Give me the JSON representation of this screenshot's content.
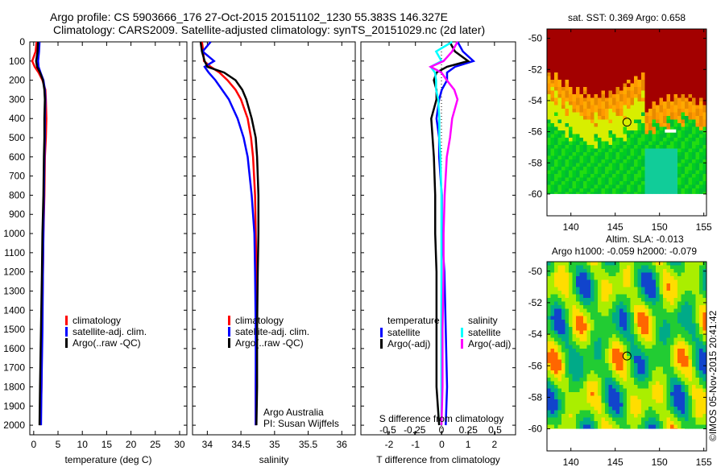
{
  "title_line1": "Argo profile: CS 5903666_176 27-Oct-2015 20151102_1230 55.383S 146.327E",
  "title_line2": "Climatology: CARS2009. Satellite-adjusted climatology: synTS_20151029.nc (2d later)",
  "colors": {
    "climatology": "#ff0000",
    "satellite": "#0000ff",
    "argo": "#000000",
    "sal_satellite": "#00ffff",
    "sal_argo": "#ff00ff"
  },
  "chart_data": [
    {
      "type": "line",
      "xlabel": "temperature (deg C)",
      "ylabel": "",
      "xlim": [
        -0.8,
        31.5
      ],
      "ylim": [
        2050,
        0
      ],
      "xticks": [
        "0",
        "5",
        "10",
        "15",
        "20",
        "25",
        "30"
      ],
      "xtick_values": [
        0,
        5,
        10,
        15,
        20,
        25,
        30
      ],
      "yticks": [
        "0",
        "100",
        "200",
        "300",
        "400",
        "500",
        "600",
        "700",
        "800",
        "900",
        "1000",
        "1100",
        "1200",
        "1300",
        "1400",
        "1500",
        "1600",
        "1700",
        "1800",
        "1900",
        "2000"
      ],
      "legend": [
        "climatology",
        "satellite-adj. clim.",
        "Argo(..raw -QC)"
      ],
      "depth": [
        0,
        50,
        100,
        130,
        160,
        200,
        250,
        300,
        400,
        500,
        600,
        800,
        1000,
        1200,
        1500,
        1800,
        2000
      ],
      "series": [
        {
          "name": "climatology",
          "color": "climatology",
          "values": [
            0.6,
            0.4,
            -0.3,
            0.2,
            1.0,
            1.8,
            2.4,
            2.5,
            2.6,
            2.5,
            2.3,
            2.2,
            2.0,
            1.9,
            1.7,
            1.6,
            1.4
          ]
        },
        {
          "name": "satellite-adj. clim.",
          "color": "satellite",
          "values": [
            1.2,
            1.1,
            0.9,
            1.0,
            1.4,
            2.0,
            2.3,
            2.4,
            2.3,
            2.3,
            2.2,
            2.1,
            2.0,
            1.9,
            1.8,
            1.6,
            1.5
          ]
        },
        {
          "name": "Argo(..raw -QC)",
          "color": "argo",
          "values": [
            0.9,
            0.8,
            0.5,
            0.7,
            1.3,
            1.9,
            2.2,
            2.3,
            2.2,
            2.2,
            2.1,
            2.0,
            1.8,
            1.7,
            1.5,
            1.3,
            1.2
          ]
        }
      ]
    },
    {
      "type": "line",
      "xlabel": "salinity",
      "xlim": [
        33.78,
        36.2
      ],
      "ylim": [
        2050,
        0
      ],
      "xticks": [
        "34",
        "34.5",
        "35",
        "35.5",
        "36"
      ],
      "xtick_values": [
        34,
        34.5,
        35,
        35.5,
        36
      ],
      "legend": [
        "climatology",
        "satellite-adj. clim.",
        "Argo(..raw -QC)"
      ],
      "annotation": [
        "Argo Australia",
        "PI: Susan Wijffels"
      ],
      "depth": [
        0,
        50,
        100,
        130,
        160,
        200,
        250,
        300,
        400,
        500,
        600,
        800,
        1000,
        1200,
        1500,
        1800,
        2000
      ],
      "series": [
        {
          "name": "climatology",
          "color": "climatology",
          "values": [
            33.92,
            33.94,
            33.95,
            34.05,
            34.18,
            34.3,
            34.42,
            34.5,
            34.6,
            34.65,
            34.68,
            34.71,
            34.72,
            34.73,
            34.73,
            34.72,
            34.72
          ]
        },
        {
          "name": "satellite-adj. clim.",
          "color": "satellite",
          "values": [
            34.05,
            33.93,
            34.1,
            33.96,
            34.02,
            34.12,
            34.22,
            34.32,
            34.45,
            34.54,
            34.6,
            34.66,
            34.7,
            34.71,
            34.72,
            34.72,
            34.72
          ]
        },
        {
          "name": "Argo(..raw -QC)",
          "color": "argo",
          "values": [
            33.9,
            33.92,
            33.96,
            34.0,
            34.25,
            34.42,
            34.52,
            34.58,
            34.66,
            34.72,
            34.74,
            34.76,
            34.76,
            34.75,
            34.74,
            34.74,
            34.73
          ]
        }
      ]
    },
    {
      "type": "line",
      "xlabel": "T difference from climatology",
      "top_xlabel": "S difference from climatology",
      "xlim": [
        -3.07,
        2.8
      ],
      "ylim": [
        2050,
        0
      ],
      "xticks": [
        "-2",
        "-1",
        "0",
        "1",
        "2"
      ],
      "xtick_values": [
        -2,
        -1,
        0,
        1,
        2
      ],
      "top_xticks": [
        "-0.5",
        "-0.25",
        "0",
        "0.25",
        "0.5"
      ],
      "top_xtick_values": [
        -0.5,
        -0.25,
        0,
        0.25,
        0.5
      ],
      "legend_temperature": {
        "heading": "temperature",
        "items": [
          "satellite",
          "Argo(-adj)"
        ]
      },
      "legend_salinity": {
        "heading": "salinity",
        "items": [
          "satellite",
          "Argo(-adj)"
        ]
      },
      "depth": [
        0,
        50,
        100,
        130,
        160,
        200,
        250,
        300,
        400,
        500,
        600,
        800,
        1000,
        1200,
        1500,
        1800,
        2000
      ],
      "series": [
        {
          "name": "T satellite",
          "color": "satellite",
          "axis": "T",
          "values": [
            0.6,
            0.8,
            1.2,
            0.5,
            0.2,
            0.2,
            0.0,
            -0.1,
            -0.2,
            -0.1,
            -0.1,
            0.0,
            0.0,
            0.1,
            0.15,
            0.2,
            0.15
          ]
        },
        {
          "name": "T Argo(-adj)",
          "color": "argo",
          "axis": "T",
          "values": [
            0.3,
            0.5,
            1.0,
            0.2,
            -0.2,
            -0.3,
            -0.2,
            -0.2,
            -0.4,
            -0.35,
            -0.3,
            -0.25,
            -0.25,
            -0.2,
            -0.2,
            -0.2,
            -0.1
          ]
        },
        {
          "name": "S satellite",
          "color": "sal_satellite",
          "axis": "S",
          "values": [
            0.1,
            -0.05,
            0.0,
            -0.1,
            -0.06,
            -0.05,
            -0.05,
            -0.03,
            -0.02,
            -0.02,
            -0.01,
            0.0,
            0.0,
            0.0,
            0.0,
            0.0,
            0.0
          ]
        },
        {
          "name": "S Argo(-adj)",
          "color": "sal_argo",
          "axis": "S",
          "values": [
            0.15,
            0.1,
            0.02,
            -0.1,
            0.0,
            0.05,
            0.12,
            0.15,
            0.1,
            0.08,
            0.05,
            0.03,
            0.02,
            0.02,
            0.01,
            0.01,
            0.0
          ]
        }
      ]
    },
    {
      "type": "heatmap",
      "title": "sat. SST: 0.369 Argo: 0.658",
      "xlim": [
        137.3,
        155.3
      ],
      "ylim": [
        -61.4,
        -49.4
      ],
      "xticks": [
        "140",
        "145",
        "150",
        "155"
      ],
      "xtick_values": [
        140,
        145,
        150,
        155
      ],
      "yticks": [
        "-50",
        "-52",
        "-54",
        "-56",
        "-58",
        "-60"
      ],
      "ytick_values": [
        -50,
        -52,
        -54,
        -56,
        -58,
        -60
      ],
      "marker": {
        "lon": 146.327,
        "lat": -55.383
      }
    },
    {
      "type": "heatmap",
      "title_line1": "Altim. SLA: -0.013",
      "title_line2": "Argo h1000: -0.059 h2000: -0.079",
      "xlim": [
        137.3,
        155.3
      ],
      "ylim": [
        -61.4,
        -49.4
      ],
      "xticks": [
        "140",
        "145",
        "150",
        "155"
      ],
      "xtick_values": [
        140,
        145,
        150,
        155
      ],
      "yticks": [
        "-50",
        "-52",
        "-54",
        "-56",
        "-58",
        "-60"
      ],
      "ytick_values": [
        -50,
        -52,
        -54,
        -56,
        -58,
        -60
      ],
      "marker": {
        "lon": 146.327,
        "lat": -55.383
      }
    }
  ],
  "credit": "©IMOS 05-Nov-2015 20:41:42"
}
